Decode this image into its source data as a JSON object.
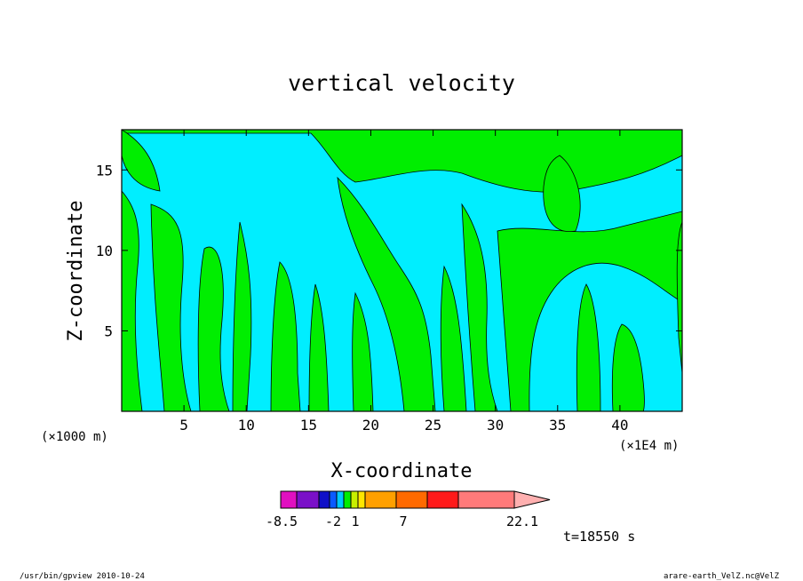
{
  "chart_data": {
    "type": "heatmap",
    "title": "vertical velocity",
    "xlabel": "X-coordinate",
    "ylabel": "Z-coordinate",
    "x_scale_label": "(×1000 m)",
    "x_unit_label": "(×1E4 m)",
    "xlim": [
      0,
      45
    ],
    "ylim": [
      0,
      17.5
    ],
    "x_ticks": [
      "5",
      "10",
      "15",
      "20",
      "25",
      "30",
      "35",
      "40"
    ],
    "x_tick_values": [
      5,
      10,
      15,
      20,
      25,
      30,
      35,
      40
    ],
    "y_ticks": [
      "5",
      "10",
      "15"
    ],
    "y_tick_values": [
      5,
      10,
      15
    ],
    "field_colors": {
      "negative": "#00eeff",
      "weak_positive": "#00ee00",
      "contour": "#000000"
    },
    "colorbar": {
      "labels": [
        "-8.5",
        "-2",
        "1",
        "7",
        "22.1"
      ],
      "label_values": [
        -8.5,
        -2,
        1,
        7,
        22.1
      ],
      "levels": [
        -8.5,
        -6,
        -4,
        -2,
        -1,
        0,
        0.5,
        1,
        2,
        4,
        7,
        10,
        14,
        22.1
      ],
      "colors": [
        "#e010c0",
        "#7a10c8",
        "#1010c8",
        "#0a5aff",
        "#00c8ff",
        "#00ee00",
        "#c8f000",
        "#ffe600",
        "#ffa000",
        "#ff6a00",
        "#ff1a1a",
        "#ff7a7a",
        "#ffb0b0"
      ]
    }
  },
  "time_label": "t=18550 s",
  "footer": {
    "left": "/usr/bin/gpview  2010-10-24",
    "right": "arare-earth_VelZ.nc@VelZ"
  }
}
